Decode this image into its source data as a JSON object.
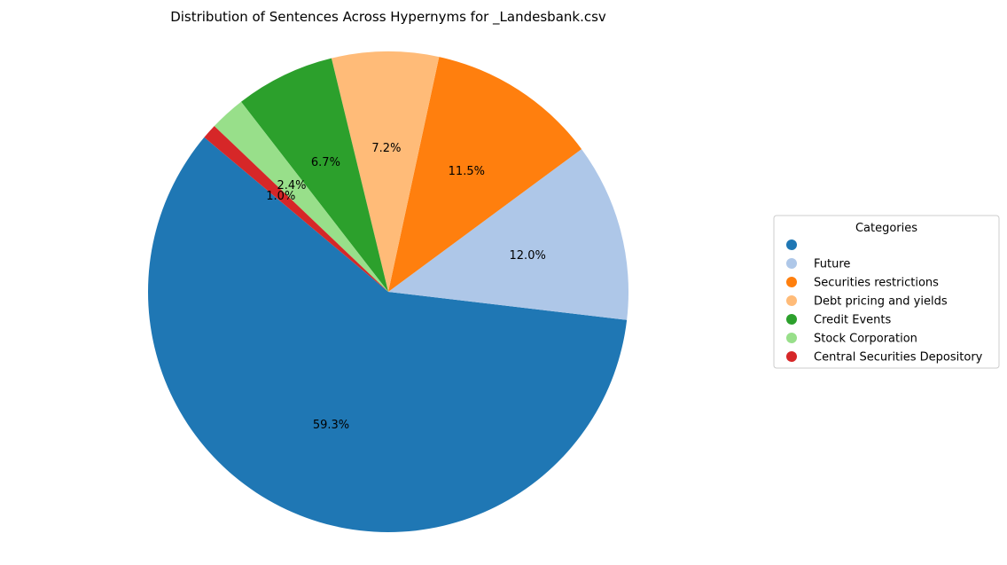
{
  "chart_data": {
    "type": "pie",
    "title": "Distribution of Sentences Across Hypernyms for _Landesbank.csv",
    "legend_title": "Categories",
    "legend_placement": "right",
    "start_angle_deg": 140,
    "direction": "counterclockwise",
    "slices": [
      {
        "label": "",
        "value": 59.3,
        "pct_label": "59.3%",
        "color": "#1f77b4"
      },
      {
        "label": "Future",
        "value": 12.0,
        "pct_label": "12.0%",
        "color": "#aec7e8"
      },
      {
        "label": "Securities restrictions",
        "value": 11.5,
        "pct_label": "11.5%",
        "color": "#ff7f0e"
      },
      {
        "label": "Debt pricing and yields",
        "value": 7.2,
        "pct_label": "7.2%",
        "color": "#ffbb78"
      },
      {
        "label": "Credit Events",
        "value": 6.7,
        "pct_label": "6.7%",
        "color": "#2ca02c"
      },
      {
        "label": "Stock Corporation",
        "value": 2.4,
        "pct_label": "2.4%",
        "color": "#98df8a"
      },
      {
        "label": "Central Securities Depository",
        "value": 1.0,
        "pct_label": "1.0%",
        "color": "#d62728"
      }
    ]
  }
}
